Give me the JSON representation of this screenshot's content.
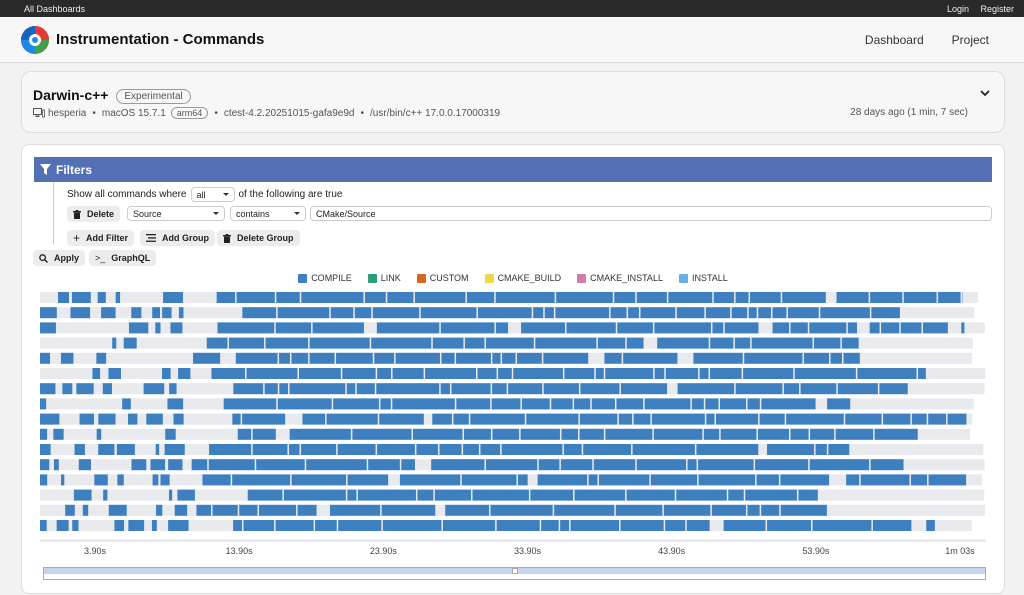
{
  "topbar": {
    "all_dashboards": "All Dashboards",
    "login": "Login",
    "register": "Register"
  },
  "header": {
    "title": "Instrumentation - Commands",
    "nav": [
      "Dashboard",
      "Project"
    ]
  },
  "build": {
    "name": "Darwin-c++",
    "type_badge": "Experimental",
    "site": "hesperia",
    "os": "macOS 15.7.1",
    "arch": "arm64",
    "ctest": "ctest-4.2.20251015-gafa9e9d",
    "compiler": "/usr/bin/c++ 17.0.0.17000319",
    "time": "28 days ago (1 min, 7 sec)"
  },
  "filters": {
    "title": "Filters",
    "prefix": "Show all commands where",
    "combine": "all",
    "suffix": "of the following are true",
    "rule": {
      "delete": "Delete",
      "field": "Source",
      "op": "contains",
      "value": "CMake/Source"
    },
    "add_filter": "Add Filter",
    "add_group": "Add Group",
    "delete_group": "Delete Group",
    "apply": "Apply",
    "graphql": "GraphQL"
  },
  "legend": [
    {
      "name": "COMPILE",
      "color": "#3d7fbf"
    },
    {
      "name": "LINK",
      "color": "#2a9d7a"
    },
    {
      "name": "CUSTOM",
      "color": "#d2691e"
    },
    {
      "name": "CMAKE_BUILD",
      "color": "#ecd94a"
    },
    {
      "name": "CMAKE_INSTALL",
      "color": "#d47aa8"
    },
    {
      "name": "INSTALL",
      "color": "#6aaee8"
    }
  ],
  "chart_data": {
    "type": "gantt",
    "x_ticks": [
      "3.90s",
      "13.90s",
      "23.90s",
      "33.90s",
      "43.90s",
      "53.90s",
      "1m 03s"
    ],
    "x_range_seconds": [
      0,
      67
    ],
    "lanes": 16
  }
}
